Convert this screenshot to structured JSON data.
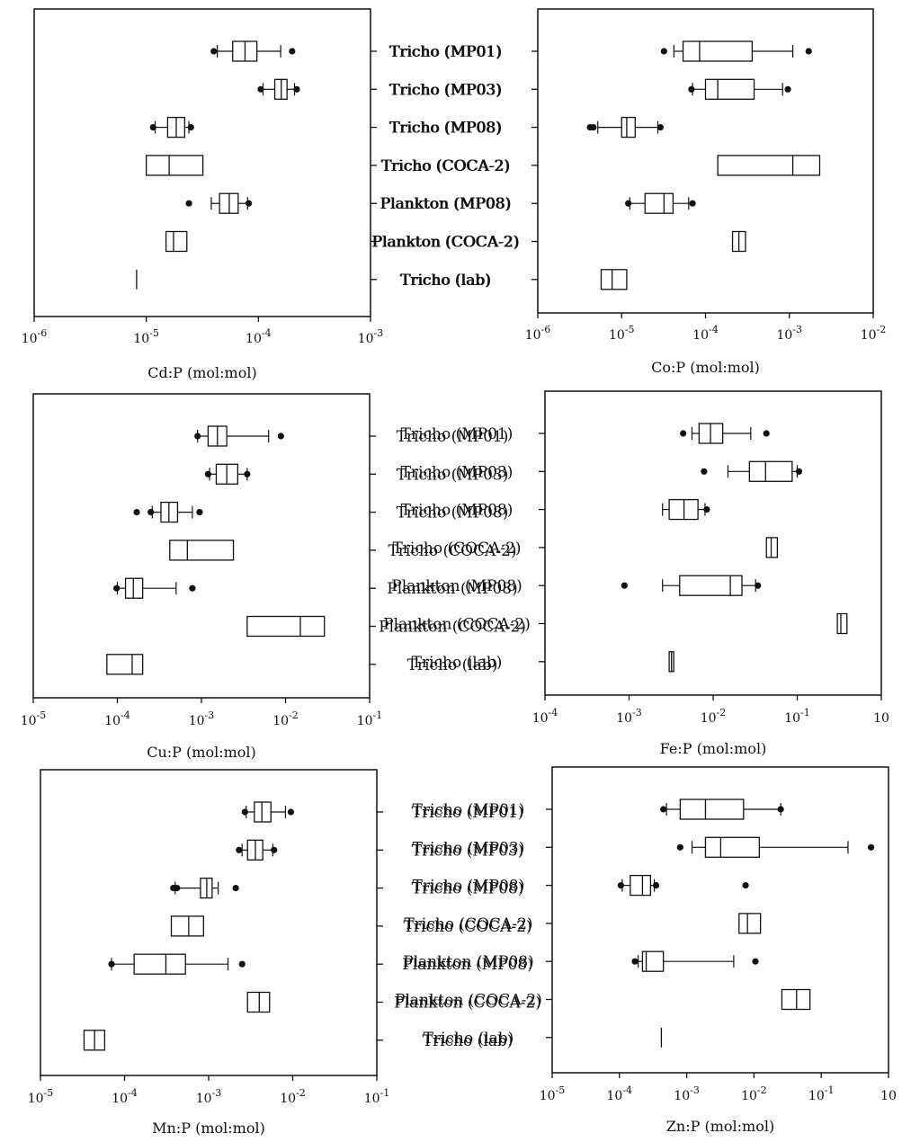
{
  "chart_data": [
    {
      "type": "box",
      "xlabel": "Cd:P (mol:mol)",
      "xscale": "log",
      "xlim": [
        1e-06,
        0.001
      ],
      "tick_labels": [
        "10-6",
        "10-5",
        "10-4",
        "10-3"
      ],
      "categories": [
        "Tricho (MP01)",
        "Tricho (MP03)",
        "Tricho (MP08)",
        "Tricho (COCA-2)",
        "Plankton (MP08)",
        "Plankton (COCA-2)",
        "Tricho (lab)"
      ],
      "category_side": "right",
      "boxes": [
        {
          "category": "Tricho (MP01)",
          "whisker_low": 4.3e-05,
          "q1": 5.9e-05,
          "median": 7.6e-05,
          "q3": 9.7e-05,
          "whisker_high": 0.000158,
          "outliers": [
            4e-05,
            0.0002
          ]
        },
        {
          "category": "Tricho (MP03)",
          "whisker_low": 0.00011,
          "q1": 0.00014,
          "median": 0.00016,
          "q3": 0.00018,
          "whisker_high": 0.00021,
          "outliers": [
            0.000105,
            0.00022
          ]
        },
        {
          "category": "Tricho (MP08)",
          "whisker_low": 1.2e-05,
          "q1": 1.55e-05,
          "median": 1.85e-05,
          "q3": 2.2e-05,
          "whisker_high": 2.4e-05,
          "outliers": [
            1.15e-05,
            2.5e-05
          ]
        },
        {
          "category": "Tricho (COCA-2)",
          "q1": 1e-05,
          "median": 1.6e-05,
          "q3": 3.2e-05
        },
        {
          "category": "Plankton (MP08)",
          "whisker_low": 3.8e-05,
          "q1": 4.5e-05,
          "median": 5.5e-05,
          "q3": 6.6e-05,
          "whisker_high": 8e-05,
          "outliers": [
            2.4e-05,
            8.2e-05
          ]
        },
        {
          "category": "Plankton (COCA-2)",
          "q1": 1.5e-05,
          "median": 1.75e-05,
          "q3": 2.3e-05
        },
        {
          "category": "Tricho (lab)",
          "q1": 8.2e-06,
          "median": 8.2e-06,
          "q3": 8.2e-06
        }
      ]
    },
    {
      "type": "box",
      "xlabel": "Co:P (mol:mol)",
      "xscale": "log",
      "xlim": [
        1e-06,
        0.01
      ],
      "tick_labels": [
        "10-6",
        "10-5",
        "10-4",
        "10-3",
        "10-2"
      ],
      "categories": [
        "Tricho (MP01)",
        "Tricho (MP03)",
        "Tricho (MP08)",
        "Tricho (COCA-2)",
        "Plankton (MP08)",
        "Plankton (COCA-2)",
        "Tricho (lab)"
      ],
      "category_side": "left",
      "boxes": [
        {
          "category": "Tricho (MP01)",
          "whisker_low": 4.2e-05,
          "q1": 5.4e-05,
          "median": 8.5e-05,
          "q3": 0.00036,
          "whisker_high": 0.0011,
          "outliers": [
            3.2e-05,
            0.0017
          ]
        },
        {
          "category": "Tricho (MP03)",
          "whisker_low": 7e-05,
          "q1": 0.0001,
          "median": 0.00014,
          "q3": 0.00038,
          "whisker_high": 0.00083,
          "outliers": [
            6.8e-05,
            0.00096
          ]
        },
        {
          "category": "Tricho (MP08)",
          "whisker_low": 5.2e-06,
          "q1": 1e-05,
          "median": 1.15e-05,
          "q3": 1.45e-05,
          "whisker_high": 2.7e-05,
          "outliers": [
            4.2e-06,
            4.6e-06,
            2.9e-05
          ]
        },
        {
          "category": "Tricho (COCA-2)",
          "q1": 0.00014,
          "median": 0.0011,
          "q3": 0.0023
        },
        {
          "category": "Plankton (MP08)",
          "whisker_low": 1.25e-05,
          "q1": 1.9e-05,
          "median": 3.2e-05,
          "q3": 4.1e-05,
          "whisker_high": 6.3e-05,
          "outliers": [
            1.2e-05,
            7e-05
          ]
        },
        {
          "category": "Plankton (COCA-2)",
          "q1": 0.00021,
          "median": 0.00025,
          "q3": 0.0003
        },
        {
          "category": "Tricho (lab)",
          "q1": 5.7e-06,
          "median": 7.7e-06,
          "q3": 1.15e-05
        }
      ]
    },
    {
      "type": "box",
      "xlabel": "Cu:P (mol:mol)",
      "xscale": "log",
      "xlim": [
        1e-05,
        0.1
      ],
      "tick_labels": [
        "10-5",
        "10-4",
        "10-3",
        "10-2",
        "10-1"
      ],
      "categories": [
        "Tricho (MP01)",
        "Tricho (MP03)",
        "Tricho (MP08)",
        "Tricho (COCA-2)",
        "Plankton (MP08)",
        "Plankton (COCA-2)",
        "Tricho (lab)"
      ],
      "category_side": "right",
      "boxes": [
        {
          "category": "Tricho (MP01)",
          "whisker_low": 0.0009,
          "q1": 0.0012,
          "median": 0.00155,
          "q3": 0.002,
          "whisker_high": 0.0063,
          "outliers": [
            0.0009,
            0.0088
          ]
        },
        {
          "category": "Tricho (MP03)",
          "whisker_low": 0.00125,
          "q1": 0.0015,
          "median": 0.002,
          "q3": 0.0027,
          "whisker_high": 0.0035,
          "outliers": [
            0.0012,
            0.0035
          ]
        },
        {
          "category": "Tricho (MP08)",
          "whisker_low": 0.00026,
          "q1": 0.00033,
          "median": 0.00041,
          "q3": 0.00052,
          "whisker_high": 0.00078,
          "outliers": [
            0.00017,
            0.00025,
            0.00095
          ]
        },
        {
          "category": "Tricho (COCA-2)",
          "q1": 0.00042,
          "median": 0.00068,
          "q3": 0.0024
        },
        {
          "category": "Plankton (MP08)",
          "whisker_low": 0.0001,
          "q1": 0.000125,
          "median": 0.000155,
          "q3": 0.0002,
          "whisker_high": 0.0005,
          "outliers": [
            9.8e-05,
            0.00078
          ]
        },
        {
          "category": "Plankton (COCA-2)",
          "q1": 0.0035,
          "median": 0.015,
          "q3": 0.029
        },
        {
          "category": "Tricho (lab)",
          "q1": 7.5e-05,
          "median": 0.00015,
          "q3": 0.0002
        }
      ]
    },
    {
      "type": "box",
      "xlabel": "Fe:P (mol:mol)",
      "xscale": "log",
      "xlim": [
        0.0001,
        1
      ],
      "tick_labels": [
        "10-4",
        "10-3",
        "10-2",
        "10-1",
        "10"
      ],
      "categories": [
        "Tricho (MP01)",
        "Tricho (MP03)",
        "Tricho (MP08)",
        "Tricho (COCA-2)",
        "Plankton (MP08)",
        "Plankton (COCA-2)",
        "Tricho (lab)"
      ],
      "category_side": "left",
      "boxes": [
        {
          "category": "Tricho (MP01)",
          "whisker_low": 0.0056,
          "q1": 0.0068,
          "median": 0.0093,
          "q3": 0.013,
          "whisker_high": 0.028,
          "outliers": [
            0.0044,
            0.043
          ]
        },
        {
          "category": "Tricho (MP03)",
          "whisker_low": 0.015,
          "q1": 0.027,
          "median": 0.042,
          "q3": 0.087,
          "whisker_high": 0.1,
          "outliers": [
            0.0078,
            0.105
          ]
        },
        {
          "category": "Tricho (MP08)",
          "whisker_low": 0.0025,
          "q1": 0.003,
          "median": 0.0045,
          "q3": 0.0066,
          "whisker_high": 0.008,
          "outliers": [
            0.0084
          ]
        },
        {
          "category": "Tricho (COCA-2)",
          "q1": 0.043,
          "median": 0.049,
          "q3": 0.058
        },
        {
          "category": "Plankton (MP08)",
          "whisker_low": 0.0025,
          "q1": 0.004,
          "median": 0.016,
          "q3": 0.022,
          "whisker_high": 0.032,
          "outliers": [
            0.00088,
            0.034
          ]
        },
        {
          "category": "Plankton (COCA-2)",
          "q1": 0.3,
          "median": 0.33,
          "q3": 0.39
        },
        {
          "category": "Tricho (lab)",
          "q1": 0.003,
          "median": 0.0032,
          "q3": 0.0034
        }
      ]
    },
    {
      "type": "box",
      "xlabel": "Mn:P (mol:mol)",
      "xscale": "log",
      "xlim": [
        1e-05,
        0.1
      ],
      "tick_labels": [
        "10-5",
        "10-4",
        "10-3",
        "10-2",
        "10-1"
      ],
      "categories": [
        "Tricho (MP01)",
        "Tricho (MP03)",
        "Tricho (MP08)",
        "Tricho (COCA-2)",
        "Plankton (MP08)",
        "Plankton (COCA-2)",
        "Tricho (lab)"
      ],
      "category_side": "right",
      "boxes": [
        {
          "category": "Tricho (MP01)",
          "whisker_low": 0.0028,
          "q1": 0.0035,
          "median": 0.0043,
          "q3": 0.0055,
          "whisker_high": 0.0082,
          "outliers": [
            0.0027,
            0.0095
          ]
        },
        {
          "category": "Tricho (MP03)",
          "whisker_low": 0.0025,
          "q1": 0.0029,
          "median": 0.0036,
          "q3": 0.0044,
          "whisker_high": 0.0058,
          "outliers": [
            0.0023,
            0.006
          ]
        },
        {
          "category": "Tricho (MP08)",
          "whisker_low": 0.0004,
          "q1": 0.0008,
          "median": 0.00095,
          "q3": 0.0011,
          "whisker_high": 0.0013,
          "outliers": [
            0.00038,
            0.00042,
            0.0021
          ]
        },
        {
          "category": "Tricho (COCA-2)",
          "q1": 0.00036,
          "median": 0.00058,
          "q3": 0.00087
        },
        {
          "category": "Plankton (MP08)",
          "whisker_low": 7e-05,
          "q1": 0.00013,
          "median": 0.00031,
          "q3": 0.00053,
          "whisker_high": 0.0017,
          "outliers": [
            7e-05,
            0.0025
          ]
        },
        {
          "category": "Plankton (COCA-2)",
          "q1": 0.0029,
          "median": 0.004,
          "q3": 0.0053
        },
        {
          "category": "Tricho (lab)",
          "q1": 3.3e-05,
          "median": 4.4e-05,
          "q3": 5.8e-05
        }
      ]
    },
    {
      "type": "box",
      "xlabel": "Zn:P (mol:mol)",
      "xscale": "log",
      "xlim": [
        1e-05,
        1
      ],
      "tick_labels": [
        "10-5",
        "10-4",
        "10-3",
        "10-2",
        "10-1",
        "10"
      ],
      "categories": [
        "Tricho (MP01)",
        "Tricho (MP03)",
        "Tricho (MP08)",
        "Tricho (COCA-2)",
        "Plankton (MP08)",
        "Plankton (COCA-2)",
        "Tricho (lab)"
      ],
      "category_side": "left",
      "boxes": [
        {
          "category": "Tricho (MP01)",
          "whisker_low": 0.0005,
          "q1": 0.0008,
          "median": 0.0019,
          "q3": 0.007,
          "whisker_high": 0.025,
          "outliers": [
            0.00045,
            0.025
          ]
        },
        {
          "category": "Tricho (MP03)",
          "whisker_low": 0.0012,
          "q1": 0.0019,
          "median": 0.0032,
          "q3": 0.012,
          "whisker_high": 0.25,
          "outliers": [
            0.0008,
            0.55
          ]
        },
        {
          "category": "Tricho (MP08)",
          "whisker_low": 0.00011,
          "q1": 0.000145,
          "median": 0.00022,
          "q3": 0.00029,
          "whisker_high": 0.00033,
          "outliers": [
            0.000105,
            0.00035,
            0.0075
          ]
        },
        {
          "category": "Tricho (COCA-2)",
          "q1": 0.006,
          "median": 0.008,
          "q3": 0.0125
        },
        {
          "category": "Plankton (MP08)",
          "whisker_low": 0.00019,
          "q1": 0.00022,
          "median": 0.00025,
          "q3": 0.00045,
          "whisker_high": 0.005,
          "outliers": [
            0.00017,
            0.0105
          ]
        },
        {
          "category": "Plankton (COCA-2)",
          "q1": 0.026,
          "median": 0.043,
          "q3": 0.068
        },
        {
          "category": "Tricho (lab)",
          "q1": 0.00042,
          "median": 0.00042,
          "q3": 0.00042
        }
      ]
    }
  ]
}
